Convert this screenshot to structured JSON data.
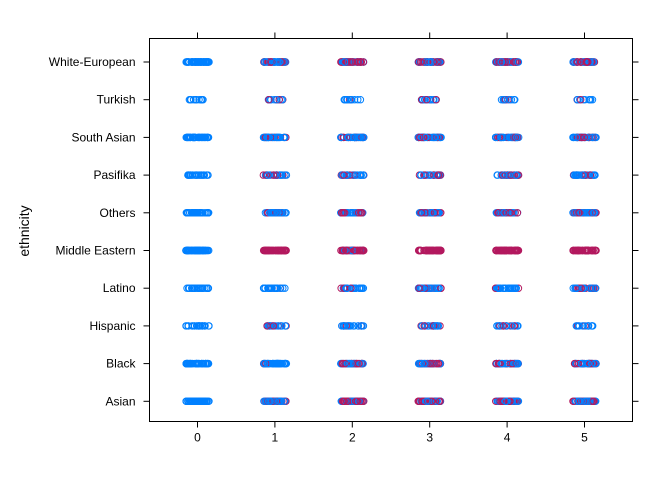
{
  "chart_data": {
    "type": "scatter",
    "title": "",
    "xlabel": "",
    "ylabel": "ethnicity",
    "x_ticks": [
      0,
      1,
      2,
      3,
      4,
      5
    ],
    "xlim": [
      -0.62,
      5.62
    ],
    "categories": [
      "Asian",
      "Black",
      "Hispanic",
      "Latino",
      "Middle Eastern",
      "Others",
      "Pasifika",
      "South Asian",
      "Turkish",
      "White-European"
    ],
    "colors": {
      "blue": "#0080ff",
      "magenta": "#b3195f",
      "frame": "#000000"
    },
    "jitter_spread": 0.15,
    "strips": [
      {
        "category": "Asian",
        "densities": [
          1.0,
          0.95,
          0.95,
          0.95,
          0.95,
          0.95
        ],
        "magenta": [
          0.0,
          0.45,
          0.5,
          0.45,
          0.45,
          0.5
        ]
      },
      {
        "category": "Black",
        "densities": [
          0.9,
          0.95,
          0.9,
          0.85,
          0.85,
          0.85
        ],
        "magenta": [
          0.0,
          0.05,
          0.5,
          0.4,
          0.4,
          0.4
        ]
      },
      {
        "category": "Hispanic",
        "densities": [
          0.35,
          0.3,
          0.35,
          0.35,
          0.3,
          0.2
        ],
        "magenta": [
          0.0,
          0.2,
          0.1,
          0.15,
          0.2,
          0.1
        ]
      },
      {
        "category": "Latino",
        "densities": [
          0.4,
          0.35,
          0.45,
          0.5,
          0.45,
          0.5
        ],
        "magenta": [
          0.0,
          0.15,
          0.35,
          0.3,
          0.2,
          0.35
        ]
      },
      {
        "category": "Middle Eastern",
        "densities": [
          1.0,
          1.0,
          1.0,
          1.0,
          1.0,
          1.0
        ],
        "magenta": [
          0.0,
          1.0,
          0.9,
          1.0,
          1.0,
          1.0
        ]
      },
      {
        "category": "Others",
        "densities": [
          0.6,
          0.6,
          0.65,
          0.65,
          0.65,
          0.7
        ],
        "magenta": [
          0.0,
          0.3,
          0.35,
          0.4,
          0.4,
          0.4
        ]
      },
      {
        "category": "Pasifika",
        "densities": [
          0.35,
          0.4,
          0.45,
          0.4,
          0.45,
          0.5
        ],
        "magenta": [
          0.0,
          0.35,
          0.35,
          0.4,
          0.3,
          0.35
        ]
      },
      {
        "category": "South Asian",
        "densities": [
          0.85,
          0.75,
          0.85,
          0.8,
          0.8,
          0.8
        ],
        "magenta": [
          0.0,
          0.2,
          0.3,
          0.25,
          0.25,
          0.3
        ]
      },
      {
        "category": "Turkish",
        "densities": [
          0.15,
          0.18,
          0.15,
          0.2,
          0.15,
          0.12
        ],
        "magenta": [
          0.0,
          0.25,
          0.1,
          0.25,
          0.15,
          0.2
        ]
      },
      {
        "category": "White-European",
        "densities": [
          1.0,
          0.95,
          0.95,
          0.95,
          0.95,
          0.95
        ],
        "magenta": [
          0.0,
          0.5,
          0.55,
          0.45,
          0.5,
          0.5
        ]
      }
    ],
    "grid": false,
    "legend": "none"
  }
}
